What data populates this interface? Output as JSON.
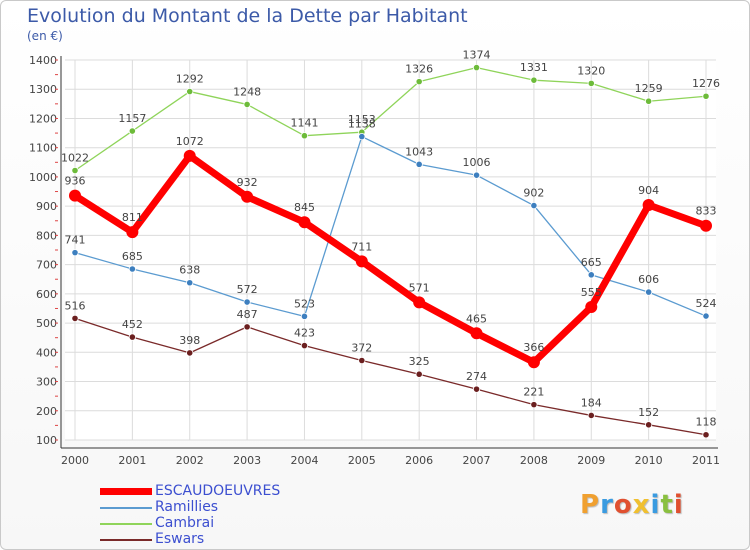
{
  "chart_data": {
    "type": "line",
    "title": "Evolution du Montant de la Dette par Habitant",
    "unit_label": "(en €)",
    "categories": [
      "2000",
      "2001",
      "2002",
      "2003",
      "2004",
      "2005",
      "2006",
      "2007",
      "2008",
      "2009",
      "2010",
      "2011"
    ],
    "ylim": [
      100,
      1400
    ],
    "yticks": [
      100,
      200,
      300,
      400,
      500,
      600,
      700,
      800,
      900,
      1000,
      1100,
      1200,
      1300,
      1400
    ],
    "grid": true,
    "legend_placement": "bottom-left",
    "series": [
      {
        "name": "Cambrai",
        "color": "#8fd45a",
        "marker_color": "#6dbb3a",
        "values": [
          1022,
          1157,
          1292,
          1248,
          1141,
          1153,
          1326,
          1374,
          1331,
          1320,
          1259,
          1276
        ]
      },
      {
        "name": "Ramillies",
        "color": "#5b9bd0",
        "marker_color": "#3d7fbf",
        "values": [
          741,
          685,
          638,
          572,
          523,
          1138,
          1043,
          1006,
          902,
          665,
          606,
          524
        ]
      },
      {
        "name": "Eswars",
        "color": "#7a2a2a",
        "marker_color": "#6b1f1f",
        "values": [
          516,
          452,
          398,
          487,
          423,
          372,
          325,
          274,
          221,
          184,
          152,
          118
        ]
      },
      {
        "name": "ESCAUDOEUVRES",
        "color": "#ff0000",
        "marker_color": "#ff0000",
        "values": [
          936,
          811,
          1072,
          932,
          845,
          711,
          571,
          465,
          366,
          555,
          904,
          833
        ]
      }
    ],
    "legend_order": [
      "ESCAUDOEUVRES",
      "Ramillies",
      "Cambrai",
      "Eswars"
    ]
  },
  "logo": {
    "letters": [
      "P",
      "r",
      "o",
      "x",
      "i",
      "t",
      "i"
    ],
    "colors": [
      "#f0a030",
      "#3a9be0",
      "#e05030",
      "#f0c030",
      "#3a9be0",
      "#8ac040",
      "#e05030"
    ]
  }
}
